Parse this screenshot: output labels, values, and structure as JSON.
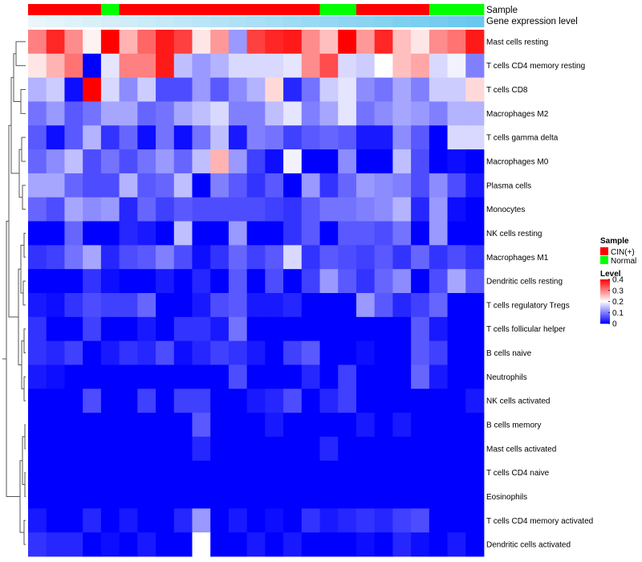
{
  "chart_data": {
    "type": "heatmap",
    "title": "",
    "annotations": {
      "sample_label": "Sample",
      "expression_label": "Gene expression level",
      "sample_groups": [
        "CIN(+)",
        "CIN(+)",
        "CIN(+)",
        "CIN(+)",
        "Normal",
        "CIN(+)",
        "CIN(+)",
        "CIN(+)",
        "CIN(+)",
        "CIN(+)",
        "CIN(+)",
        "CIN(+)",
        "CIN(+)",
        "CIN(+)",
        "CIN(+)",
        "CIN(+)",
        "Normal",
        "Normal",
        "CIN(+)",
        "CIN(+)",
        "CIN(+)",
        "CIN(+)",
        "Normal",
        "Normal",
        "Normal"
      ],
      "expression_levels": [
        0.02,
        0.04,
        0.06,
        0.08,
        0.1,
        0.12,
        0.14,
        0.16,
        0.18,
        0.2,
        0.22,
        0.24,
        0.26,
        0.28,
        0.3,
        0.32,
        0.34,
        0.36,
        0.38,
        0.4,
        0.42,
        0.44,
        0.46,
        0.48,
        0.5
      ]
    },
    "rows": [
      "Mast cells resting",
      "T cells CD4 memory resting",
      "T cells CD8",
      "Macrophages M2",
      "T cells gamma delta",
      "Macrophages M0",
      "Plasma cells",
      "Monocytes",
      "NK cells resting",
      "Macrophages M1",
      "Dendritic cells resting",
      "T cells regulatory  Tregs",
      "T cells follicular helper",
      "B cells naive",
      "Neutrophils",
      "NK cells activated",
      "B cells memory",
      "Mast cells activated",
      "T cells CD4 naive",
      "Eosinophils",
      "T cells CD4 memory activated",
      "Dendritic cells activated"
    ],
    "values": [
      [
        0.3,
        0.37,
        0.29,
        0.21,
        0.4,
        0.26,
        0.32,
        0.38,
        0.35,
        0.22,
        0.28,
        0.12,
        0.35,
        0.37,
        0.38,
        0.29,
        0.25,
        0.4,
        0.28,
        0.37,
        0.25,
        0.22,
        0.29,
        0.31,
        0.38
      ],
      [
        0.22,
        0.26,
        0.31,
        0.0,
        0.18,
        0.3,
        0.3,
        0.38,
        0.15,
        0.12,
        0.14,
        0.17,
        0.17,
        0.17,
        0.18,
        0.29,
        0.34,
        0.17,
        0.16,
        0.2,
        0.25,
        0.27,
        0.17,
        0.19,
        0.1
      ],
      [
        0.14,
        0.16,
        0.01,
        0.4,
        0.17,
        0.11,
        0.16,
        0.06,
        0.06,
        0.12,
        0.07,
        0.11,
        0.14,
        0.23,
        0.03,
        0.09,
        0.16,
        0.18,
        0.11,
        0.09,
        0.13,
        0.1,
        0.16,
        0.16,
        0.23
      ],
      [
        0.09,
        0.12,
        0.07,
        0.09,
        0.13,
        0.13,
        0.08,
        0.09,
        0.13,
        0.15,
        0.17,
        0.1,
        0.1,
        0.15,
        0.18,
        0.1,
        0.13,
        0.18,
        0.09,
        0.11,
        0.13,
        0.12,
        0.1,
        0.14,
        0.14
      ],
      [
        0.07,
        0.01,
        0.07,
        0.14,
        0.04,
        0.08,
        0.01,
        0.09,
        0.01,
        0.09,
        0.15,
        0.02,
        0.1,
        0.09,
        0.05,
        0.07,
        0.08,
        0.07,
        0.02,
        0.02,
        0.11,
        0.07,
        0.0,
        0.17,
        0.17
      ],
      [
        0.08,
        0.11,
        0.15,
        0.06,
        0.09,
        0.06,
        0.09,
        0.12,
        0.08,
        0.15,
        0.26,
        0.12,
        0.05,
        0.01,
        0.19,
        0.0,
        0.0,
        0.11,
        0.0,
        0.0,
        0.15,
        0.06,
        0.0,
        0.01,
        0.0
      ],
      [
        0.13,
        0.13,
        0.08,
        0.06,
        0.06,
        0.14,
        0.07,
        0.08,
        0.15,
        0.0,
        0.1,
        0.07,
        0.04,
        0.07,
        0.0,
        0.12,
        0.04,
        0.08,
        0.12,
        0.11,
        0.1,
        0.06,
        0.11,
        0.06,
        0.02
      ],
      [
        0.08,
        0.06,
        0.13,
        0.11,
        0.12,
        0.03,
        0.08,
        0.05,
        0.07,
        0.06,
        0.06,
        0.06,
        0.06,
        0.05,
        0.04,
        0.07,
        0.09,
        0.09,
        0.1,
        0.11,
        0.14,
        0.03,
        0.12,
        0.01,
        0.0
      ],
      [
        0.0,
        0.0,
        0.08,
        0.0,
        0.0,
        0.03,
        0.02,
        0.0,
        0.15,
        0.0,
        0.0,
        0.12,
        0.0,
        0.0,
        0.04,
        0.07,
        0.0,
        0.07,
        0.07,
        0.06,
        0.09,
        0.0,
        0.12,
        0.0,
        0.0
      ],
      [
        0.04,
        0.05,
        0.09,
        0.13,
        0.03,
        0.06,
        0.07,
        0.1,
        0.06,
        0.01,
        0.04,
        0.08,
        0.05,
        0.07,
        0.17,
        0.04,
        0.07,
        0.06,
        0.05,
        0.07,
        0.04,
        0.08,
        0.04,
        0.06,
        0.04
      ],
      [
        0.0,
        0.0,
        0.0,
        0.04,
        0.01,
        0.0,
        0.0,
        0.02,
        0.0,
        0.03,
        0.0,
        0.07,
        0.0,
        0.06,
        0.0,
        0.05,
        0.12,
        0.07,
        0.04,
        0.08,
        0.11,
        0.0,
        0.06,
        0.13,
        0.07
      ],
      [
        0.02,
        0.01,
        0.04,
        0.06,
        0.05,
        0.05,
        0.08,
        0.0,
        0.0,
        0.02,
        0.06,
        0.07,
        0.02,
        0.02,
        0.03,
        0.0,
        0.0,
        0.0,
        0.12,
        0.07,
        0.03,
        0.05,
        0.08,
        0.0,
        0.0
      ],
      [
        0.04,
        0.0,
        0.0,
        0.05,
        0.0,
        0.0,
        0.02,
        0.0,
        0.04,
        0.04,
        0.02,
        0.09,
        0.0,
        0.0,
        0.0,
        0.0,
        0.0,
        0.0,
        0.0,
        0.0,
        0.0,
        0.07,
        0.02,
        0.0,
        0.0
      ],
      [
        0.04,
        0.03,
        0.05,
        0.0,
        0.02,
        0.04,
        0.03,
        0.06,
        0.01,
        0.03,
        0.05,
        0.04,
        0.02,
        0.0,
        0.05,
        0.07,
        0.0,
        0.0,
        0.01,
        0.0,
        0.0,
        0.07,
        0.05,
        0.0,
        0.0
      ],
      [
        0.02,
        0.01,
        0.0,
        0.0,
        0.0,
        0.0,
        0.0,
        0.0,
        0.0,
        0.0,
        0.0,
        0.06,
        0.0,
        0.0,
        0.0,
        0.03,
        0.0,
        0.05,
        0.0,
        0.0,
        0.0,
        0.08,
        0.02,
        0.0,
        0.0
      ],
      [
        0.0,
        0.0,
        0.0,
        0.06,
        0.0,
        0.0,
        0.05,
        0.0,
        0.05,
        0.05,
        0.0,
        0.0,
        0.02,
        0.03,
        0.06,
        0.0,
        0.03,
        0.05,
        0.0,
        0.0,
        0.0,
        0.0,
        0.0,
        0.0,
        0.02
      ],
      [
        0.0,
        0.0,
        0.0,
        0.0,
        0.0,
        0.0,
        0.0,
        0.0,
        0.0,
        0.07,
        0.0,
        0.0,
        0.0,
        0.02,
        0.0,
        0.0,
        0.0,
        0.0,
        0.02,
        0.0,
        0.02,
        0.0,
        0.0,
        0.0,
        0.0
      ],
      [
        0.0,
        0.0,
        0.0,
        0.0,
        0.0,
        0.0,
        0.0,
        0.0,
        0.0,
        0.03,
        0.0,
        0.0,
        0.0,
        0.0,
        0.0,
        0.0,
        0.03,
        0.0,
        0.0,
        0.0,
        0.0,
        0.0,
        0.0,
        0.0,
        0.0
      ],
      [
        0.0,
        0.0,
        0.0,
        0.0,
        0.0,
        0.0,
        0.0,
        0.0,
        0.0,
        0.0,
        0.0,
        0.0,
        0.0,
        0.0,
        0.0,
        0.0,
        0.0,
        0.0,
        0.0,
        0.0,
        0.0,
        0.0,
        0.0,
        0.0,
        0.0
      ],
      [
        0.0,
        0.0,
        0.0,
        0.0,
        0.0,
        0.0,
        0.0,
        0.0,
        0.0,
        0.0,
        0.0,
        0.0,
        0.0,
        0.0,
        0.0,
        0.0,
        0.0,
        0.0,
        0.0,
        0.0,
        0.0,
        0.0,
        0.0,
        0.0,
        0.0
      ],
      [
        0.02,
        0.0,
        0.0,
        0.03,
        0.0,
        0.02,
        0.0,
        0.0,
        0.03,
        0.12,
        0.0,
        0.02,
        0.0,
        0.01,
        0.0,
        0.04,
        0.02,
        0.03,
        0.04,
        0.03,
        0.05,
        0.06,
        0.0,
        0.0,
        0.0
      ],
      [
        0.04,
        0.03,
        0.03,
        0.0,
        0.01,
        0.0,
        0.02,
        0.0,
        0.0,
        0.2,
        0.0,
        0.0,
        0.02,
        0.0,
        0.02,
        0.0,
        0.0,
        0.0,
        0.01,
        0.0,
        0.03,
        0.01,
        0.0,
        0.02,
        0.0
      ]
    ],
    "color_scale": {
      "min": 0,
      "mid": 0.2,
      "max": 0.4,
      "low": "#0000ff",
      "mid_color": "#ffffff",
      "high": "#ff0000"
    },
    "group_colors": {
      "CIN(+)": "#ff0000",
      "Normal": "#00ff00"
    },
    "expression_colors": {
      "low": "#eaf6fb",
      "high": "#6ac8ee"
    },
    "legend": {
      "sample_title": "Sample",
      "sample_entries": [
        "CIN(+)",
        "Normal"
      ],
      "level_title": "Level",
      "level_ticks": [
        "0.4",
        "0.3",
        "0.2",
        "0.1",
        "0"
      ],
      "level_tick_values": [
        0.4,
        0.3,
        0.2,
        0.1,
        0
      ]
    },
    "dendrogram": "row",
    "xlabel": "",
    "ylabel": ""
  }
}
